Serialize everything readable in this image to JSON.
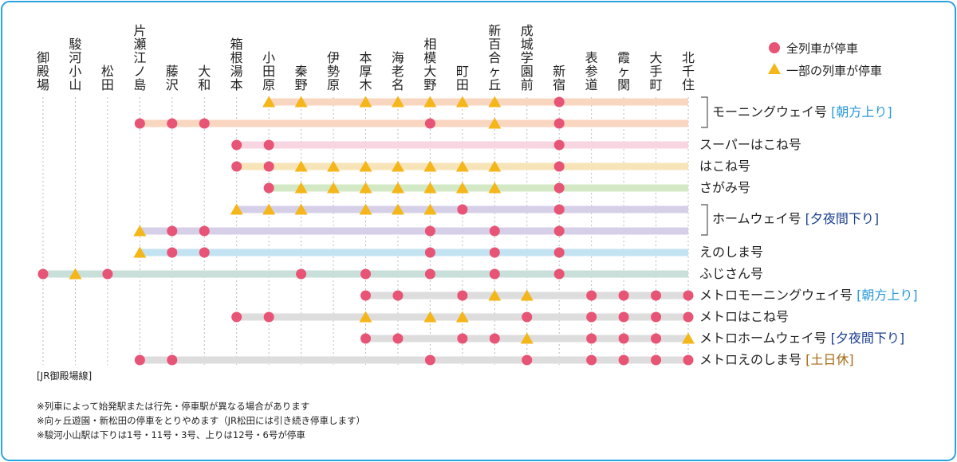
{
  "colors": {
    "frame": "#2ba3de",
    "stop_all": "#e75475",
    "stop_some": "#f4b619",
    "dotted": "#bbbbbb"
  },
  "legend": [
    {
      "icon": "circle",
      "label": "全列車が停車"
    },
    {
      "icon": "triangle",
      "label": "一部の列車が停車"
    }
  ],
  "stations": [
    "御殿場",
    "駿河小山",
    "松田",
    "片瀬江ノ島",
    "藤沢",
    "大和",
    "箱根湯本",
    "小田原",
    "秦野",
    "伊勢原",
    "本厚木",
    "海老名",
    "相模大野",
    "町田",
    "新百合ヶ丘",
    "成城学園前",
    "新宿",
    "表参道",
    "霞ヶ関",
    "大手町",
    "北千住"
  ],
  "services": [
    {
      "color": "#f9d6c0",
      "from": 7,
      "to": 20,
      "stops": {
        "7": "T",
        "8": "T",
        "10": "T",
        "11": "T",
        "12": "T",
        "13": "T",
        "14": "T",
        "16": "C"
      }
    },
    {
      "color": "#f9d6c0",
      "from": 3,
      "to": 20,
      "stops": {
        "3": "C",
        "4": "C",
        "5": "C",
        "12": "C",
        "14": "T",
        "16": "C"
      }
    },
    {
      "color": "#f7d6e2",
      "from": 6,
      "to": 20,
      "stops": {
        "6": "C",
        "7": "C",
        "16": "C"
      }
    },
    {
      "color": "#f7e4b8",
      "from": 6,
      "to": 20,
      "stops": {
        "6": "C",
        "7": "C",
        "8": "T",
        "9": "T",
        "10": "T",
        "11": "T",
        "12": "T",
        "13": "T",
        "14": "T",
        "16": "C"
      }
    },
    {
      "color": "#d3e8c4",
      "from": 7,
      "to": 20,
      "stops": {
        "7": "C",
        "8": "T",
        "9": "T",
        "10": "T",
        "11": "T",
        "12": "T",
        "13": "T",
        "14": "T",
        "16": "C"
      }
    },
    {
      "color": "#d5cfe7",
      "from": 6,
      "to": 20,
      "stops": {
        "6": "T",
        "7": "T",
        "8": "T",
        "10": "T",
        "11": "T",
        "12": "T",
        "13": "C",
        "16": "C"
      }
    },
    {
      "color": "#d5cfe7",
      "from": 3,
      "to": 20,
      "stops": {
        "3": "T",
        "4": "C",
        "5": "C",
        "12": "C",
        "14": "C",
        "16": "C"
      }
    },
    {
      "color": "#c3e3f2",
      "from": 3,
      "to": 20,
      "stops": {
        "3": "T",
        "4": "C",
        "5": "C",
        "12": "C",
        "14": "C",
        "16": "C"
      }
    },
    {
      "color": "#c9dfd9",
      "from": 0,
      "to": 20,
      "stops": {
        "0": "C",
        "1": "T",
        "2": "C",
        "8": "C",
        "10": "C",
        "12": "C",
        "14": "C",
        "16": "C"
      }
    },
    {
      "color": "#dddddd",
      "from": 10,
      "to": 20,
      "stops": {
        "10": "C",
        "11": "C",
        "13": "C",
        "14": "T",
        "15": "T",
        "17": "C",
        "18": "C",
        "19": "C",
        "20": "C"
      }
    },
    {
      "color": "#dddddd",
      "from": 6,
      "to": 20,
      "stops": {
        "6": "C",
        "7": "C",
        "10": "T",
        "12": "T",
        "13": "T",
        "15": "C",
        "17": "C",
        "18": "C",
        "19": "C",
        "20": "C"
      }
    },
    {
      "color": "#dddddd",
      "from": 10,
      "to": 20,
      "stops": {
        "10": "C",
        "11": "C",
        "13": "C",
        "14": "C",
        "15": "T",
        "17": "C",
        "18": "C",
        "19": "C",
        "20": "T"
      }
    },
    {
      "color": "#dddddd",
      "from": 3,
      "to": 20,
      "stops": {
        "3": "C",
        "4": "C",
        "12": "C",
        "15": "C",
        "17": "C",
        "18": "C",
        "19": "C",
        "20": "C"
      }
    }
  ],
  "labels": {
    "morning_way": "モーニングウェイ号",
    "morning_way_note": "[朝方上り]",
    "super_hakone": "スーパーはこね号",
    "hakone": "はこね号",
    "sagami": "さがみ号",
    "home_way": "ホームウェイ号",
    "home_way_note": "[夕夜間下り]",
    "enoshima": "えのしま号",
    "fujisan": "ふじさん号",
    "metro_morning_way": "メトロモーニングウェイ号",
    "metro_morning_way_note": "[朝方上り]",
    "metro_hakone": "メトロはこね号",
    "metro_home_way": "メトロホームウェイ号",
    "metro_home_way_note": "[夕夜間下り]",
    "metro_enoshima": "メトロえのしま号",
    "metro_enoshima_note": "[土日休]"
  },
  "line_note": "[JR御殿場線]",
  "footnotes": [
    "※列車によって始発駅または行先・停車駅が異なる場合があります",
    "※向ヶ丘遊園・新松田の停車をとりやめます（JR松田には引き続き停車します）",
    "※駿河小山駅は下りは1号・11号・3号、上りは12号・6号が停車"
  ]
}
